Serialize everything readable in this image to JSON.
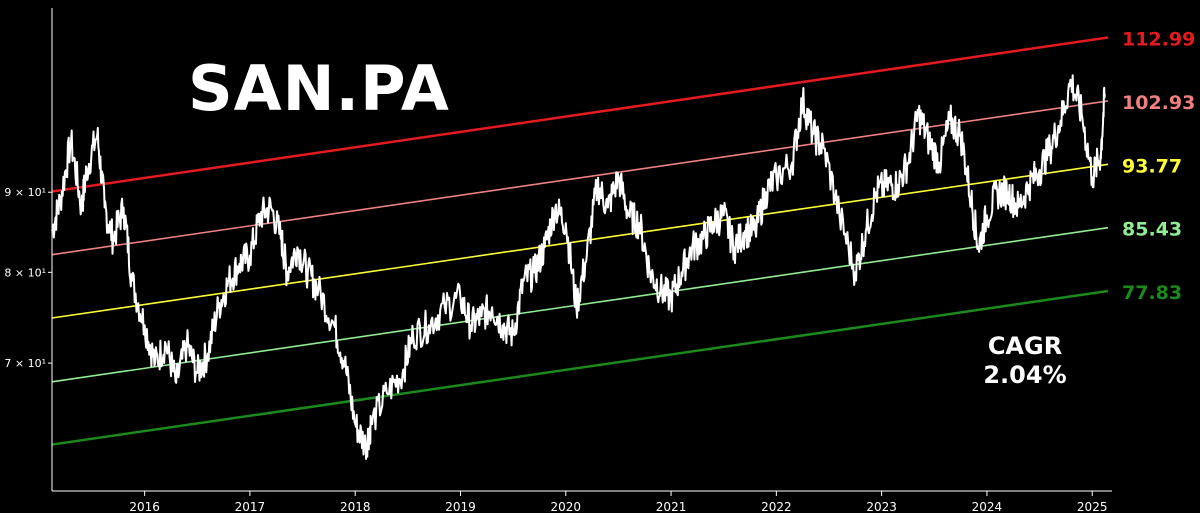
{
  "chart_data": {
    "type": "line",
    "title": "SAN.PA",
    "xlabel": "",
    "ylabel": "",
    "y_scale": "log",
    "ylim": [
      58,
      118
    ],
    "xlim": [
      2015.12,
      2025.15
    ],
    "grid": false,
    "legend": "none",
    "x_tick_labels": [
      "2016",
      "2017",
      "2018",
      "2019",
      "2020",
      "2021",
      "2022",
      "2023",
      "2024",
      "2025"
    ],
    "y_tick_labels": [
      "7 × 10¹",
      "8 × 10¹",
      "9 × 10¹"
    ],
    "y_tick_values": [
      70,
      80,
      90
    ],
    "cagr_label": "CAGR",
    "cagr_value": "2.04%",
    "channel_lines": [
      {
        "start": 90.1,
        "end": 112.99,
        "label": "112.99",
        "color": "#e41a1c"
      },
      {
        "start": 82.1,
        "end": 102.93,
        "label": "102.93",
        "color": "#f08080"
      },
      {
        "start": 74.8,
        "end": 93.77,
        "label": "93.77",
        "color": "#ffff33"
      },
      {
        "start": 68.1,
        "end": 85.43,
        "label": "85.43",
        "color": "#90ee90"
      },
      {
        "start": 62.1,
        "end": 77.83,
        "label": "77.83",
        "color": "#1a8a1a"
      }
    ],
    "series": [
      {
        "color": "#ffffff",
        "x": [
          2015.12,
          2015.2,
          2015.3,
          2015.4,
          2015.45,
          2015.55,
          2015.62,
          2015.7,
          2015.8,
          2015.88,
          2016.0,
          2016.1,
          2016.2,
          2016.3,
          2016.4,
          2016.5,
          2016.6,
          2016.7,
          2016.8,
          2016.9,
          2017.0,
          2017.1,
          2017.2,
          2017.3,
          2017.35,
          2017.45,
          2017.55,
          2017.65,
          2017.8,
          2017.9,
          2018.0,
          2018.1,
          2018.15,
          2018.3,
          2018.45,
          2018.55,
          2018.7,
          2018.85,
          2019.0,
          2019.1,
          2019.2,
          2019.3,
          2019.4,
          2019.5,
          2019.6,
          2019.7,
          2019.8,
          2019.9,
          2020.0,
          2020.1,
          2020.2,
          2020.3,
          2020.4,
          2020.5,
          2020.6,
          2020.7,
          2020.8,
          2020.9,
          2021.0,
          2021.1,
          2021.2,
          2021.3,
          2021.4,
          2021.5,
          2021.6,
          2021.7,
          2021.8,
          2021.9,
          2022.0,
          2022.15,
          2022.25,
          2022.35,
          2022.45,
          2022.6,
          2022.75,
          2022.85,
          2022.95,
          2023.05,
          2023.15,
          2023.25,
          2023.35,
          2023.45,
          2023.55,
          2023.65,
          2023.75,
          2023.85,
          2023.92,
          2024.0,
          2024.1,
          2024.2,
          2024.3,
          2024.4,
          2024.5,
          2024.6,
          2024.7,
          2024.8,
          2024.9,
          2025.0,
          2025.08,
          2025.12
        ],
        "y": [
          85,
          89,
          97,
          88,
          93,
          98,
          88,
          84,
          88,
          79,
          74,
          70,
          72,
          68,
          72,
          69,
          71,
          76,
          79,
          81,
          82,
          87,
          88,
          84,
          80,
          83,
          80,
          78,
          74,
          70,
          64,
          62,
          64,
          67,
          69,
          73,
          74,
          76,
          77,
          74,
          75,
          76,
          74,
          73,
          79,
          80,
          83,
          88,
          86,
          76,
          82,
          91,
          88,
          92,
          87,
          86,
          80,
          78,
          77,
          80,
          83,
          84,
          86,
          87,
          83,
          85,
          85,
          90,
          92,
          94,
          103,
          98,
          96,
          87,
          80,
          85,
          90,
          91,
          91,
          94,
          101,
          97,
          94,
          100,
          98,
          89,
          83,
          87,
          90,
          90,
          88,
          91,
          93,
          96,
          100,
          106,
          101,
          92,
          95,
          104
        ]
      }
    ]
  }
}
